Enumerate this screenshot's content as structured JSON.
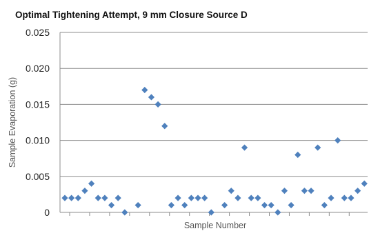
{
  "chart_data": {
    "type": "scatter",
    "title": "Optimal Tightening Attempt, 9 mm Closure  Source D",
    "xlabel": "Sample Number",
    "ylabel": "Sample Evaporation (g)",
    "ylim": [
      0,
      0.025
    ],
    "yticks": [
      "0",
      "0.005",
      "0.010",
      "0.015",
      "0.020",
      "0.025"
    ],
    "grid": "horizontal",
    "marker": "diamond",
    "marker_color": "#4f81bd",
    "x": [
      1,
      2,
      3,
      4,
      5,
      6,
      7,
      8,
      9,
      10,
      11,
      12,
      13,
      14,
      15,
      16,
      17,
      18,
      19,
      20,
      21,
      22,
      23,
      24,
      25,
      26,
      27,
      28,
      29,
      30,
      31,
      32,
      33,
      34,
      35,
      36,
      37,
      38,
      39,
      40,
      41,
      42,
      43,
      44,
      45,
      46,
      47,
      48,
      49,
      50,
      51,
      52,
      53,
      54,
      55,
      56,
      57,
      58,
      59,
      60,
      61,
      62,
      63,
      64,
      65,
      66
    ],
    "y": [
      0.002,
      0.002,
      0.002,
      0.003,
      0.004,
      0.002,
      0.002,
      0.001,
      0.002,
      0.0,
      null,
      0.001,
      0.017,
      0.016,
      0.015,
      0.012,
      0.001,
      0.002,
      0.001,
      0.002,
      0.002,
      0.002,
      0.0,
      null,
      0.001,
      0.003,
      0.002,
      0.009,
      0.002,
      0.002,
      0.001,
      0.001,
      0.0,
      0.003,
      0.001,
      0.008,
      0.003,
      0.003,
      0.009,
      0.001,
      0.002,
      0.01,
      0.002,
      0.002,
      0.003,
      0.004,
      0.002,
      0.002,
      0.002,
      0.002,
      null,
      null,
      null,
      null,
      null,
      null,
      null,
      null,
      null,
      null,
      null,
      null,
      null,
      null,
      null,
      null
    ]
  }
}
